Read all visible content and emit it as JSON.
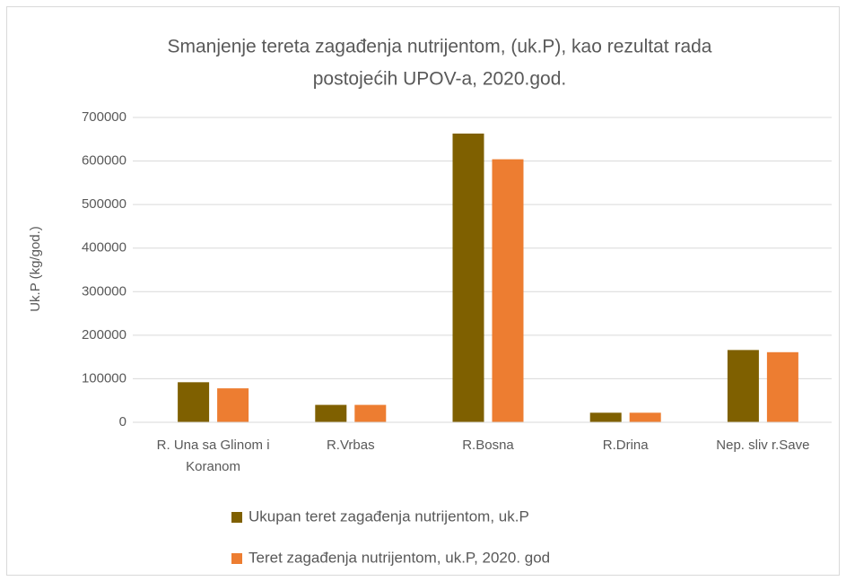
{
  "chart_data": {
    "type": "bar",
    "title": [
      "Smanjenje tereta zagađenja nutrijentom, (uk.P), kao rezultat rada",
      "postojećih UPOV-a, 2020.god."
    ],
    "y_label": "Uk.P (kg/god.)",
    "categories": [
      "R. Una sa Glinom i Koranom",
      "R.Vrbas",
      "R.Bosna",
      "R.Drina",
      "Nep. sliv r.Save"
    ],
    "series": [
      {
        "name": "Ukupan teret zagađenja nutrijentom, uk.P",
        "color": "#7f6000",
        "values": [
          92000,
          40000,
          663000,
          22000,
          166000
        ]
      },
      {
        "name": "Teret zagađenja nutrijentom, uk.P, 2020. god",
        "color": "#ed7d31",
        "values": [
          78000,
          40000,
          604000,
          22000,
          161000
        ]
      }
    ],
    "ylim": [
      0,
      700000
    ],
    "yticks": [
      0,
      100000,
      200000,
      300000,
      400000,
      500000,
      600000,
      700000
    ],
    "grid": true,
    "legend": "bottom"
  }
}
